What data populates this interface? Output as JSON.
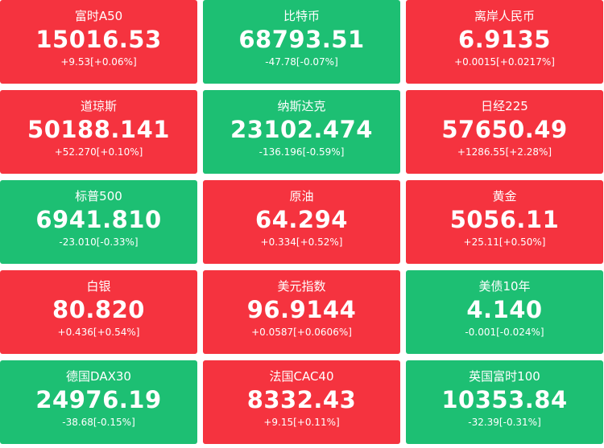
{
  "tiles": [
    {
      "name": "富时A50",
      "value": "15016.53",
      "change": "+9.53[+0.06%]",
      "color": "#f5333f"
    },
    {
      "name": "比特币",
      "value": "68793.51",
      "change": "-47.78[-0.07%]",
      "color": "#1dbf73"
    },
    {
      "name": "离岸人民币",
      "value": "6.9135",
      "change": "+0.0015[+0.0217%]",
      "color": "#f5333f"
    },
    {
      "name": "道琼斯",
      "value": "50188.141",
      "change": "+52.270[+0.10%]",
      "color": "#f5333f"
    },
    {
      "name": "纳斯达克",
      "value": "23102.474",
      "change": "-136.196[-0.59%]",
      "color": "#1dbf73"
    },
    {
      "name": "日经225",
      "value": "57650.49",
      "change": "+1286.55[+2.28%]",
      "color": "#f5333f"
    },
    {
      "name": "标普500",
      "value": "6941.810",
      "change": "-23.010[-0.33%]",
      "color": "#1dbf73"
    },
    {
      "name": "原油",
      "value": "64.294",
      "change": "+0.334[+0.52%]",
      "color": "#f5333f"
    },
    {
      "name": "黄金",
      "value": "5056.11",
      "change": "+25.11[+0.50%]",
      "color": "#f5333f"
    },
    {
      "name": "白银",
      "value": "80.820",
      "change": "+0.436[+0.54%]",
      "color": "#f5333f"
    },
    {
      "name": "美元指数",
      "value": "96.9144",
      "change": "+0.0587[+0.0606%]",
      "color": "#f5333f"
    },
    {
      "name": "美债10年",
      "value": "4.140",
      "change": "-0.001[-0.024%]",
      "color": "#1dbf73"
    },
    {
      "name": "德国DAX30",
      "value": "24976.19",
      "change": "-38.68[-0.15%]",
      "color": "#1dbf73"
    },
    {
      "name": "法国CAC40",
      "value": "8332.43",
      "change": "+9.15[+0.11%]",
      "color": "#f5333f"
    },
    {
      "name": "英国富时100",
      "value": "10353.84",
      "change": "-32.39[-0.31%]",
      "color": "#1dbf73"
    }
  ]
}
